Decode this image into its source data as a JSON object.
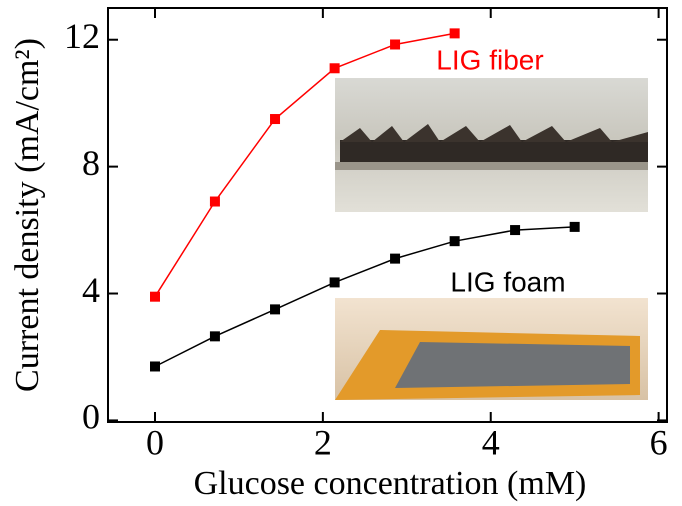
{
  "chart_data": {
    "type": "line",
    "xlabel": "Glucose concentration (mM)",
    "ylabel": "Current density (mA/cm²)",
    "xlim": [
      -0.56,
      6.1
    ],
    "xticks": [
      0,
      2,
      4,
      6
    ],
    "ylim": [
      -0.05,
      13
    ],
    "yticks": [
      0,
      4,
      8,
      12
    ],
    "series": [
      {
        "name": "LIG fiber",
        "color": "#ff0000",
        "x": [
          0,
          0.714,
          1.43,
          2.14,
          2.86,
          3.57
        ],
        "values": [
          3.9,
          6.9,
          9.5,
          11.1,
          11.85,
          12.2
        ]
      },
      {
        "name": "LIG foam",
        "color": "#000000",
        "x": [
          0,
          0.714,
          1.43,
          2.14,
          2.86,
          3.57,
          4.29,
          5.0
        ],
        "values": [
          1.7,
          2.65,
          3.5,
          4.35,
          5.1,
          5.65,
          6.0,
          6.1
        ]
      }
    ]
  }
}
